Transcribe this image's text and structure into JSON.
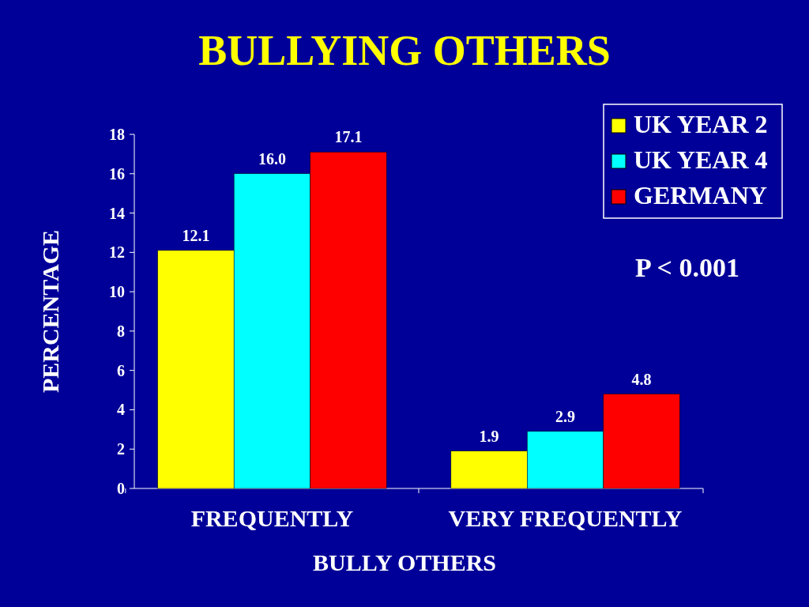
{
  "chart_data": {
    "type": "bar",
    "title": "BULLYING OTHERS",
    "xlabel": "BULLY OTHERS",
    "ylabel": "PERCENTAGE",
    "categories": [
      "FREQUENTLY",
      "VERY FREQUENTLY"
    ],
    "series": [
      {
        "name": "UK YEAR 2",
        "color": "#ffff00",
        "values": [
          12.1,
          1.9
        ],
        "value_labels": [
          "12.1",
          "1.9"
        ]
      },
      {
        "name": "UK YEAR 4",
        "color": "#00ffff",
        "values": [
          16.0,
          2.9
        ],
        "value_labels": [
          "16.0",
          "2.9"
        ]
      },
      {
        "name": "GERMANY",
        "color": "#ff0000",
        "values": [
          17.1,
          4.8
        ],
        "value_labels": [
          "17.1",
          "4.8"
        ]
      }
    ],
    "ylim": [
      0,
      18
    ],
    "yticks": [
      0,
      2,
      4,
      6,
      8,
      10,
      12,
      14,
      16,
      18
    ],
    "grid": false,
    "legend": "top right",
    "annotations": [
      "P < 0.001"
    ]
  }
}
